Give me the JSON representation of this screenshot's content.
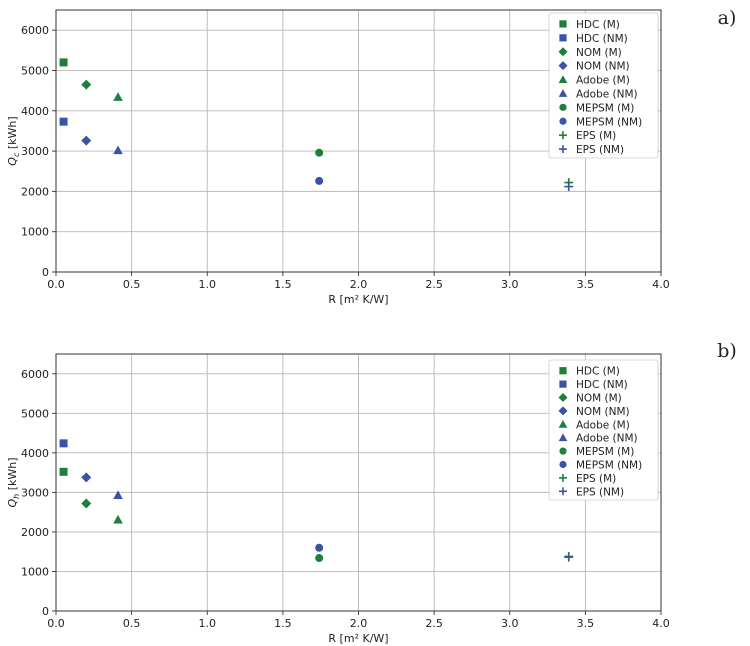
{
  "chart_data": [
    {
      "type": "scatter",
      "panel_label": "a)",
      "xlabel": "R [m² K/W]",
      "ylabel": "Q",
      "ylabel_sub": "c",
      "ylabel_unit": "[kWh]",
      "xlim": [
        0,
        4
      ],
      "ylim": [
        0,
        6500
      ],
      "xticks": [
        "0.0",
        "0.5",
        "1.0",
        "1.5",
        "2.0",
        "2.5",
        "3.0",
        "3.5",
        "4.0"
      ],
      "yticks": [
        "0",
        "1000",
        "2000",
        "3000",
        "4000",
        "5000",
        "6000"
      ],
      "grid": true,
      "legend_position": "top-right",
      "series": [
        {
          "name": "HDC (M)",
          "marker": "square",
          "color": "#1e7f3b",
          "x": 0.05,
          "y": 5200
        },
        {
          "name": "HDC (NM)",
          "marker": "square",
          "color": "#3a53a4",
          "x": 0.05,
          "y": 3730
        },
        {
          "name": "NOM (M)",
          "marker": "diamond",
          "color": "#1e7f3b",
          "x": 0.2,
          "y": 4650
        },
        {
          "name": "NOM (NM)",
          "marker": "diamond",
          "color": "#3a53a4",
          "x": 0.2,
          "y": 3260
        },
        {
          "name": "Adobe (M)",
          "marker": "triangle",
          "color": "#1e7f3b",
          "x": 0.41,
          "y": 4340
        },
        {
          "name": "Adobe (NM)",
          "marker": "triangle",
          "color": "#3a53a4",
          "x": 0.41,
          "y": 3020
        },
        {
          "name": "MEPSM (M)",
          "marker": "circle",
          "color": "#1e7f3b",
          "x": 1.74,
          "y": 2960
        },
        {
          "name": "MEPSM (NM)",
          "marker": "circle",
          "color": "#3a53a4",
          "x": 1.74,
          "y": 2260
        },
        {
          "name": "EPS (M)",
          "marker": "plus",
          "color": "#1e7f3b",
          "x": 3.39,
          "y": 2220
        },
        {
          "name": "EPS (NM)",
          "marker": "plus",
          "color": "#3a53a4",
          "x": 3.39,
          "y": 2120
        }
      ]
    },
    {
      "type": "scatter",
      "panel_label": "b)",
      "xlabel": "R [m² K/W]",
      "ylabel": "Q",
      "ylabel_sub": "h",
      "ylabel_unit": "[kWh]",
      "xlim": [
        0,
        4
      ],
      "ylim": [
        0,
        6500
      ],
      "xticks": [
        "0.0",
        "0.5",
        "1.0",
        "1.5",
        "2.0",
        "2.5",
        "3.0",
        "3.5",
        "4.0"
      ],
      "yticks": [
        "0",
        "1000",
        "2000",
        "3000",
        "4000",
        "5000",
        "6000"
      ],
      "grid": true,
      "legend_position": "top-right",
      "series": [
        {
          "name": "HDC (M)",
          "marker": "square",
          "color": "#1e7f3b",
          "x": 0.05,
          "y": 3520
        },
        {
          "name": "HDC (NM)",
          "marker": "square",
          "color": "#3a53a4",
          "x": 0.05,
          "y": 4240
        },
        {
          "name": "NOM (M)",
          "marker": "diamond",
          "color": "#1e7f3b",
          "x": 0.2,
          "y": 2720
        },
        {
          "name": "NOM (NM)",
          "marker": "diamond",
          "color": "#3a53a4",
          "x": 0.2,
          "y": 3380
        },
        {
          "name": "Adobe (M)",
          "marker": "triangle",
          "color": "#1e7f3b",
          "x": 0.41,
          "y": 2310
        },
        {
          "name": "Adobe (NM)",
          "marker": "triangle",
          "color": "#3a53a4",
          "x": 0.41,
          "y": 2930
        },
        {
          "name": "MEPSM (M)",
          "marker": "circle",
          "color": "#1e7f3b",
          "x": 1.74,
          "y": 1340
        },
        {
          "name": "MEPSM (NM)",
          "marker": "circle",
          "color": "#3a53a4",
          "x": 1.74,
          "y": 1600
        },
        {
          "name": "EPS (M)",
          "marker": "plus",
          "color": "#1e7f3b",
          "x": 3.39,
          "y": 1380
        },
        {
          "name": "EPS (NM)",
          "marker": "plus",
          "color": "#3a53a4",
          "x": 3.39,
          "y": 1360
        }
      ]
    }
  ]
}
